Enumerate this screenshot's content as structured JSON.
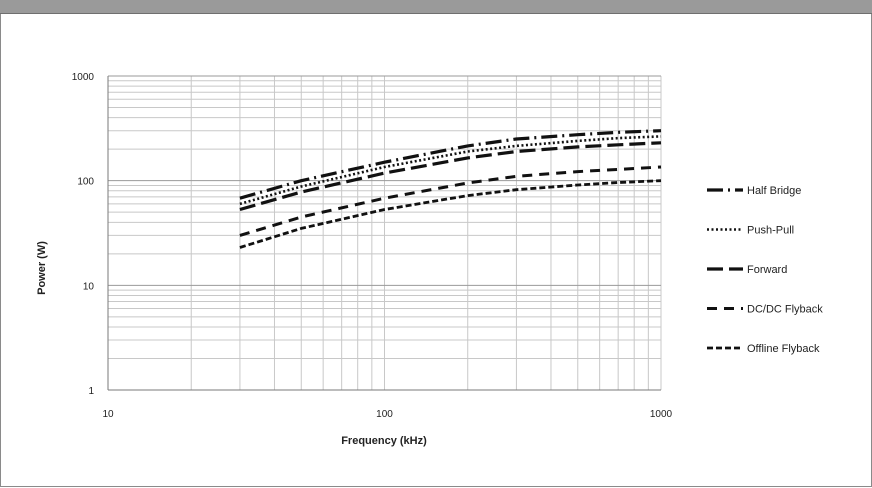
{
  "chart_data": {
    "type": "line",
    "xscale": "log",
    "yscale": "log",
    "xlim": [
      10,
      1000
    ],
    "ylim": [
      1,
      1000
    ],
    "xticks": [
      "10",
      "100",
      "1000"
    ],
    "yticks": [
      "1",
      "10",
      "100",
      "1000"
    ],
    "xlabel": "Frequency (kHz)",
    "ylabel": "Power (W)",
    "grid": true,
    "legend_position": "right",
    "x": [
      30,
      50,
      100,
      200,
      300,
      500,
      700,
      1000
    ],
    "series": [
      {
        "name": "Half Bridge",
        "style": "long-dash-dot",
        "values": [
          68,
          100,
          150,
          215,
          250,
          275,
          290,
          300
        ]
      },
      {
        "name": "Push-Pull",
        "style": "dotted",
        "values": [
          60,
          88,
          135,
          190,
          215,
          240,
          255,
          265
        ]
      },
      {
        "name": "Forward",
        "style": "long-dash",
        "values": [
          53,
          78,
          118,
          165,
          190,
          210,
          220,
          230
        ]
      },
      {
        "name": "DC/DC Flyback",
        "style": "dashed",
        "values": [
          30,
          45,
          68,
          95,
          110,
          122,
          128,
          135
        ]
      },
      {
        "name": "Offline Flyback",
        "style": "short-dash",
        "values": [
          23,
          35,
          53,
          72,
          82,
          91,
          96,
          100
        ]
      }
    ]
  }
}
